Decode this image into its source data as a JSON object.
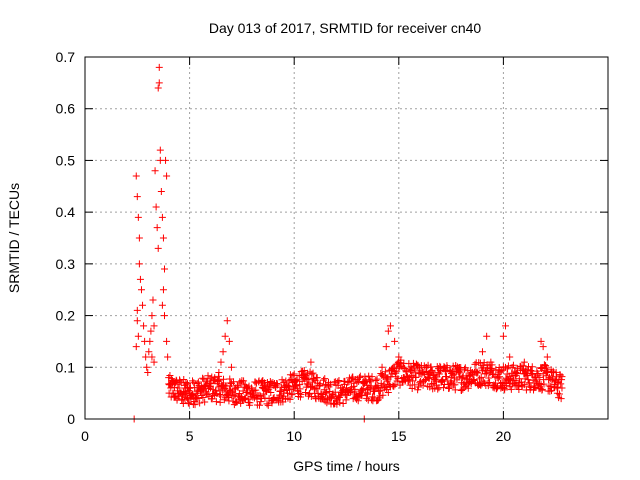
{
  "chart_data": {
    "type": "scatter",
    "title": "Day 013 of 2017, SRMTID for receiver cn40",
    "xlabel": "GPS time / hours",
    "ylabel": "SRMTID / TECUs",
    "xlim": [
      0,
      25
    ],
    "ylim": [
      0,
      0.7
    ],
    "xticks": [
      0,
      5,
      10,
      15,
      20
    ],
    "yticks": [
      0,
      0.1,
      0.2,
      0.3,
      0.4,
      0.5,
      0.6,
      0.7
    ],
    "grid": true,
    "marker": "+",
    "color": "#ff0000",
    "series": [
      {
        "name": "SRMTID",
        "points": [
          [
            2.35,
            0.0
          ],
          [
            13.35,
            0.0
          ],
          [
            2.45,
            0.47
          ],
          [
            2.5,
            0.43
          ],
          [
            2.55,
            0.39
          ],
          [
            2.6,
            0.35
          ],
          [
            2.6,
            0.3
          ],
          [
            2.65,
            0.27
          ],
          [
            2.5,
            0.21
          ],
          [
            2.55,
            0.16
          ],
          [
            2.45,
            0.14
          ],
          [
            2.5,
            0.19
          ],
          [
            2.7,
            0.25
          ],
          [
            2.75,
            0.22
          ],
          [
            2.8,
            0.18
          ],
          [
            2.85,
            0.15
          ],
          [
            2.9,
            0.12
          ],
          [
            2.95,
            0.1
          ],
          [
            3.0,
            0.09
          ],
          [
            3.05,
            0.13
          ],
          [
            3.1,
            0.15
          ],
          [
            3.15,
            0.17
          ],
          [
            3.2,
            0.2
          ],
          [
            3.2,
            0.12
          ],
          [
            3.25,
            0.23
          ],
          [
            3.3,
            0.18
          ],
          [
            3.3,
            0.11
          ],
          [
            3.35,
            0.48
          ],
          [
            3.4,
            0.41
          ],
          [
            3.45,
            0.37
          ],
          [
            3.5,
            0.33
          ],
          [
            3.5,
            0.64
          ],
          [
            3.55,
            0.68
          ],
          [
            3.55,
            0.65
          ],
          [
            3.6,
            0.52
          ],
          [
            3.6,
            0.5
          ],
          [
            3.65,
            0.44
          ],
          [
            3.7,
            0.39
          ],
          [
            3.75,
            0.35
          ],
          [
            3.8,
            0.29
          ],
          [
            3.8,
            0.2
          ],
          [
            3.85,
            0.5
          ],
          [
            3.9,
            0.47
          ],
          [
            3.9,
            0.15
          ],
          [
            3.95,
            0.12
          ],
          [
            3.75,
            0.25
          ],
          [
            3.7,
            0.22
          ],
          [
            4.0,
            0.08
          ],
          [
            4.1,
            0.06
          ],
          [
            4.2,
            0.05
          ],
          [
            4.3,
            0.07
          ],
          [
            4.4,
            0.04
          ],
          [
            4.5,
            0.06
          ],
          [
            4.6,
            0.05
          ],
          [
            4.7,
            0.03
          ],
          [
            4.8,
            0.06
          ],
          [
            4.9,
            0.04
          ],
          [
            5.0,
            0.05
          ],
          [
            5.2,
            0.07
          ],
          [
            5.4,
            0.04
          ],
          [
            5.6,
            0.06
          ],
          [
            5.8,
            0.05
          ],
          [
            6.0,
            0.06
          ],
          [
            6.2,
            0.08
          ],
          [
            6.4,
            0.09
          ],
          [
            6.5,
            0.11
          ],
          [
            6.6,
            0.13
          ],
          [
            6.7,
            0.16
          ],
          [
            6.8,
            0.19
          ],
          [
            6.9,
            0.15
          ],
          [
            7.0,
            0.1
          ],
          [
            7.2,
            0.06
          ],
          [
            7.5,
            0.04
          ],
          [
            8.0,
            0.05
          ],
          [
            8.5,
            0.06
          ],
          [
            9.0,
            0.04
          ],
          [
            9.5,
            0.05
          ],
          [
            10.0,
            0.07
          ],
          [
            10.5,
            0.08
          ],
          [
            10.8,
            0.11
          ],
          [
            11.0,
            0.06
          ],
          [
            11.5,
            0.05
          ],
          [
            12.0,
            0.04
          ],
          [
            12.5,
            0.06
          ],
          [
            13.0,
            0.07
          ],
          [
            13.5,
            0.05
          ],
          [
            14.0,
            0.06
          ],
          [
            14.2,
            0.1
          ],
          [
            14.4,
            0.14
          ],
          [
            14.5,
            0.17
          ],
          [
            14.6,
            0.18
          ],
          [
            14.8,
            0.15
          ],
          [
            15.0,
            0.12
          ],
          [
            15.2,
            0.1
          ],
          [
            15.5,
            0.08
          ],
          [
            16.0,
            0.07
          ],
          [
            16.5,
            0.09
          ],
          [
            17.0,
            0.1
          ],
          [
            17.5,
            0.08
          ],
          [
            18.0,
            0.07
          ],
          [
            18.5,
            0.09
          ],
          [
            19.0,
            0.13
          ],
          [
            19.2,
            0.16
          ],
          [
            19.4,
            0.11
          ],
          [
            19.7,
            0.08
          ],
          [
            20.0,
            0.16
          ],
          [
            20.1,
            0.18
          ],
          [
            20.3,
            0.12
          ],
          [
            20.6,
            0.09
          ],
          [
            21.0,
            0.11
          ],
          [
            21.5,
            0.08
          ],
          [
            21.8,
            0.15
          ],
          [
            21.9,
            0.14
          ],
          [
            22.1,
            0.12
          ],
          [
            22.3,
            0.09
          ],
          [
            22.6,
            0.07
          ],
          [
            22.8,
            0.06
          ]
        ],
        "background_band": {
          "x_start": 4.0,
          "x_end": 22.8,
          "baseline": [
            [
              4.0,
              0.06
            ],
            [
              5.0,
              0.05
            ],
            [
              6.0,
              0.06
            ],
            [
              7.5,
              0.05
            ],
            [
              9.0,
              0.05
            ],
            [
              10.5,
              0.07
            ],
            [
              12.0,
              0.05
            ],
            [
              13.0,
              0.06
            ],
            [
              14.0,
              0.06
            ],
            [
              15.0,
              0.09
            ],
            [
              16.0,
              0.08
            ],
            [
              17.0,
              0.08
            ],
            [
              18.0,
              0.08
            ],
            [
              19.0,
              0.09
            ],
            [
              20.0,
              0.08
            ],
            [
              21.0,
              0.08
            ],
            [
              22.0,
              0.08
            ],
            [
              22.8,
              0.06
            ]
          ],
          "spread": 0.025,
          "step_hours": 0.02
        }
      }
    ]
  }
}
